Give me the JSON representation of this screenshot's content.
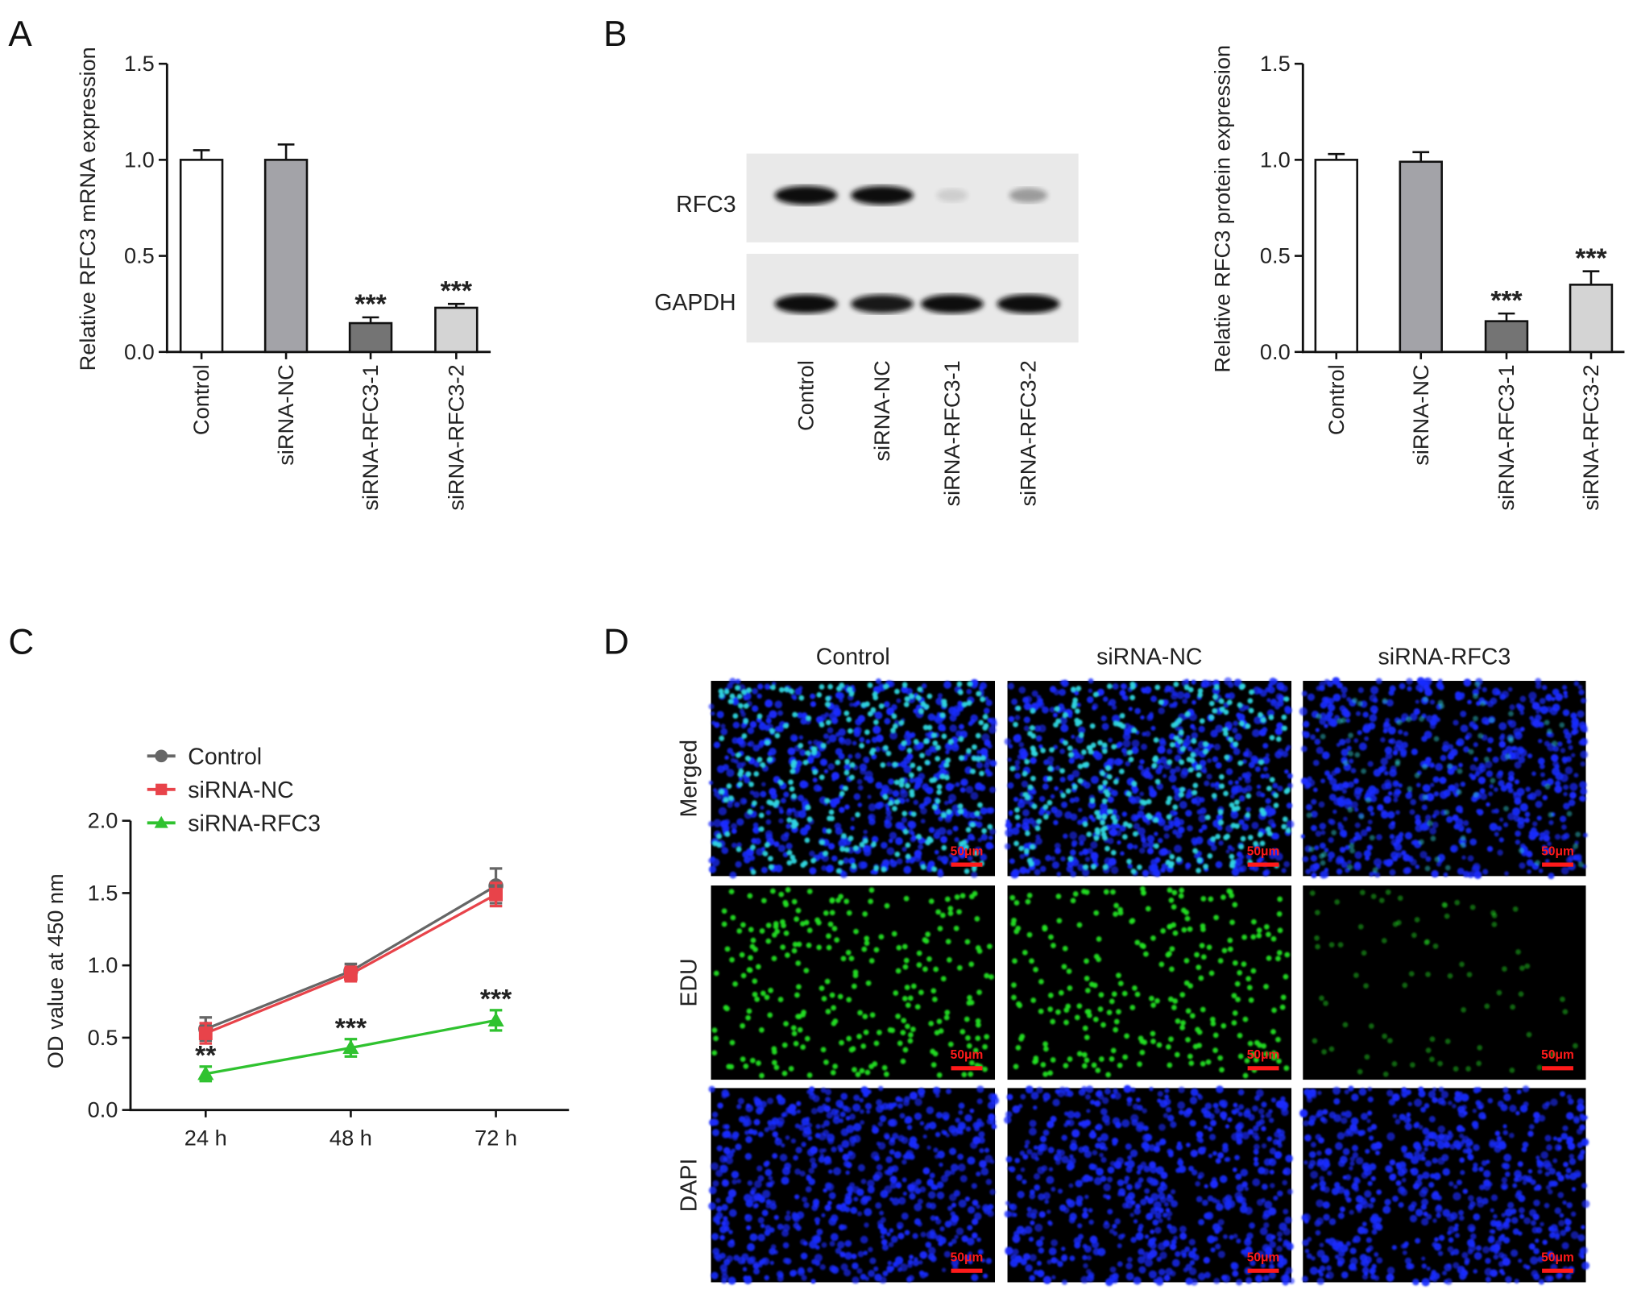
{
  "panel_labels": {
    "a": "A",
    "b": "B",
    "c": "C",
    "d": "D"
  },
  "chart_data": [
    {
      "id": "A",
      "type": "bar",
      "ylabel": "Relative RFC3 mRNA expression",
      "ylim": [
        0,
        1.5
      ],
      "yticks": [
        "0.0",
        "0.5",
        "1.0",
        "1.5"
      ],
      "categories": [
        "Control",
        "siRNA-NC",
        "siRNA-RFC3-1",
        "siRNA-RFC3-2"
      ],
      "values": [
        1.0,
        1.0,
        0.15,
        0.23
      ],
      "errors": [
        0.05,
        0.08,
        0.03,
        0.02
      ],
      "significance": [
        "",
        "",
        "***",
        "***"
      ],
      "bar_colors": [
        "#ffffff",
        "#a3a3a8",
        "#747474",
        "#d4d4d4"
      ]
    },
    {
      "id": "B",
      "type": "bar",
      "ylabel": "Relative RFC3 protein expression",
      "ylim": [
        0,
        1.5
      ],
      "yticks": [
        "0.0",
        "0.5",
        "1.0",
        "1.5"
      ],
      "categories": [
        "Control",
        "siRNA-NC",
        "siRNA-RFC3-1",
        "siRNA-RFC3-2"
      ],
      "values": [
        1.0,
        0.99,
        0.16,
        0.35
      ],
      "errors": [
        0.03,
        0.05,
        0.04,
        0.07
      ],
      "significance": [
        "",
        "",
        "***",
        "***"
      ],
      "bar_colors": [
        "#ffffff",
        "#a3a3a8",
        "#747474",
        "#d4d4d4"
      ]
    },
    {
      "id": "C",
      "type": "line",
      "ylabel": "OD value at 450 nm",
      "ylim": [
        0,
        2.0
      ],
      "yticks": [
        "0.0",
        "0.5",
        "1.0",
        "1.5",
        "2.0"
      ],
      "x": [
        "24 h",
        "48 h",
        "72 h"
      ],
      "legend_position": "top-left",
      "series": [
        {
          "name": "Control",
          "marker": "circle",
          "color": "#666666",
          "values": [
            0.56,
            0.96,
            1.55
          ],
          "errors": [
            0.08,
            0.05,
            0.12
          ]
        },
        {
          "name": "siRNA-NC",
          "marker": "square",
          "color": "#e8434a",
          "values": [
            0.53,
            0.94,
            1.49
          ],
          "errors": [
            0.07,
            0.05,
            0.08
          ]
        },
        {
          "name": "siRNA-RFC3",
          "marker": "triangle",
          "color": "#2fc22f",
          "values": [
            0.25,
            0.43,
            0.62
          ],
          "errors": [
            0.05,
            0.06,
            0.07
          ]
        }
      ],
      "significance": [
        "**",
        "***",
        "***"
      ]
    }
  ],
  "western_blot": {
    "rows": [
      {
        "label": "RFC3",
        "band_intensity": [
          1.0,
          1.0,
          0.12,
          0.35
        ]
      },
      {
        "label": "GAPDH",
        "band_intensity": [
          1.0,
          0.95,
          1.0,
          1.0
        ]
      }
    ],
    "lanes": [
      "Control",
      "siRNA-NC",
      "siRNA-RFC3-1",
      "siRNA-RFC3-2"
    ]
  },
  "edu_assay": {
    "columns": [
      "Control",
      "siRNA-NC",
      "siRNA-RFC3"
    ],
    "rows": [
      "Merged",
      "EDU",
      "DAPI"
    ],
    "scale_bar": "50μm",
    "edu_positive_level": [
      1.0,
      1.0,
      0.3
    ],
    "colors": {
      "dapi": "#1a2cff",
      "edu": "#22e022",
      "merged": "#30d8e0",
      "scale_bar": "#ff1a1a"
    }
  }
}
